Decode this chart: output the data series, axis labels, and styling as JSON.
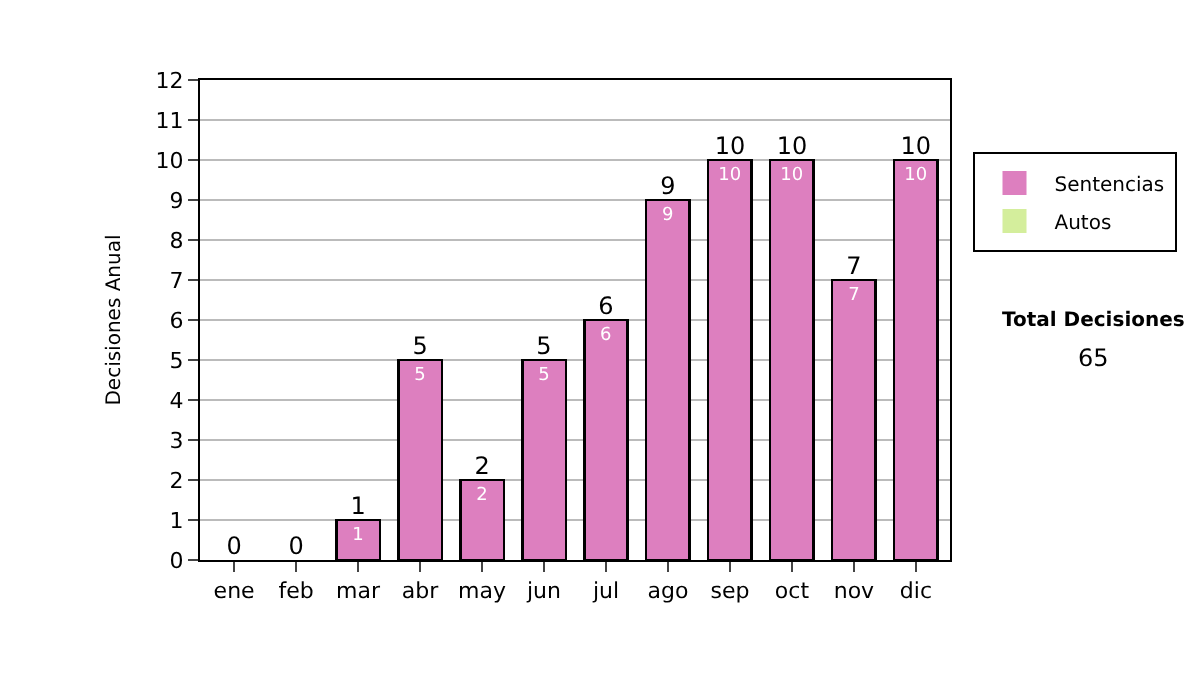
{
  "chart_data": {
    "type": "bar",
    "ylabel": "Decisiones Anual",
    "stacked": true,
    "categories": [
      "ene",
      "feb",
      "mar",
      "abr",
      "may",
      "jun",
      "jul",
      "ago",
      "sep",
      "oct",
      "nov",
      "dic"
    ],
    "series": [
      {
        "name": "Sentencias",
        "color": "#dd7fbf",
        "values": [
          0,
          0,
          1,
          5,
          2,
          5,
          6,
          9,
          10,
          10,
          7,
          10
        ],
        "value_labels": [
          null,
          null,
          "1",
          "5",
          "2",
          "5",
          "6",
          "9",
          "10",
          "10",
          "7",
          "10"
        ]
      },
      {
        "name": "Autos",
        "color": "#d4ee9c",
        "values": [
          0,
          0,
          0,
          0,
          0,
          0,
          0,
          0,
          0,
          0,
          0,
          0
        ]
      }
    ],
    "totals": [
      "0",
      "0",
      "1",
      "5",
      "2",
      "5",
      "6",
      "9",
      "10",
      "10",
      "7",
      "10"
    ],
    "ylim": [
      0,
      12
    ],
    "yticks": [
      0,
      1,
      2,
      3,
      4,
      5,
      6,
      7,
      8,
      9,
      10,
      11,
      12
    ],
    "grid": "y",
    "legend": "right",
    "annotations": [
      "Total Decisiones",
      "65"
    ]
  }
}
